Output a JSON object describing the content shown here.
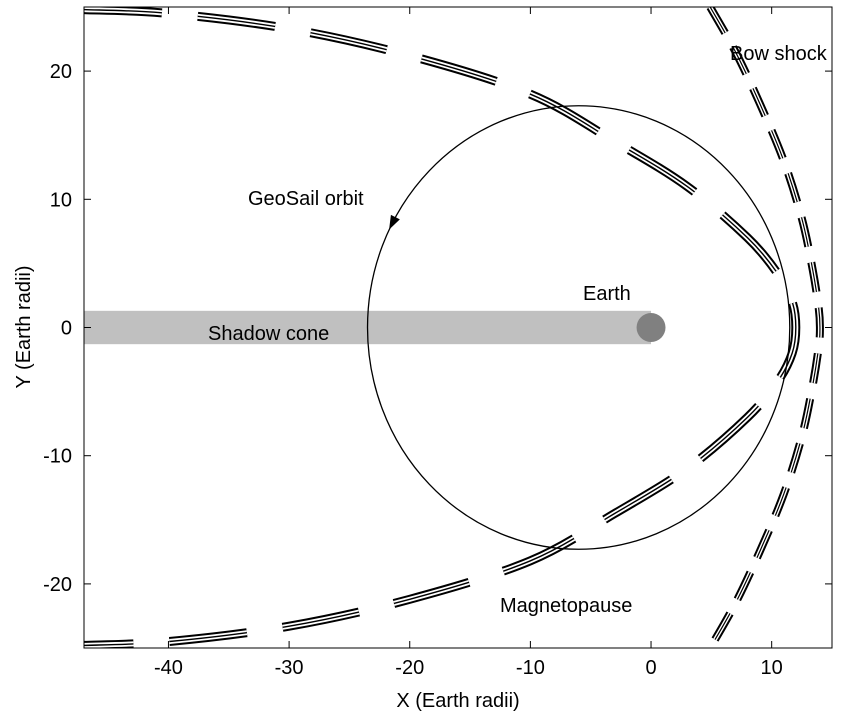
{
  "chart_data": {
    "type": "line",
    "xlabel": "X (Earth radii)",
    "ylabel": "Y (Earth radii)",
    "xlim": [
      -47,
      15
    ],
    "ylim": [
      -25,
      25
    ],
    "xticks": [
      -40,
      -30,
      -20,
      -10,
      0,
      10
    ],
    "yticks": [
      -20,
      -10,
      0,
      10,
      20
    ],
    "grid": false,
    "annotations": {
      "orbit": "GeoSail orbit",
      "earth": "Earth",
      "shadow": "Shadow cone",
      "bow_shock": "Bow shock",
      "magnetopause": "Magnetopause"
    },
    "orbit": {
      "description_values": "ellipse",
      "center_x": -6,
      "center_y": 0,
      "semi_axis_x": 17.5,
      "semi_axis_y": 17.3,
      "direction": "counterclockwise"
    },
    "earth": {
      "x": 0,
      "y": 0,
      "radius": 1.2
    },
    "shadow_cone": {
      "x_from": -47,
      "x_to": 0,
      "y_from": -1.3,
      "y_to": 1.3
    },
    "magnetopause": {
      "nose_x": 12,
      "points": [
        [
          -47,
          24.8
        ],
        [
          -40,
          24.5
        ],
        [
          -30,
          23.3
        ],
        [
          -20,
          21.2
        ],
        [
          -10,
          18.2
        ],
        [
          -3,
          14.5
        ],
        [
          3,
          11.0
        ],
        [
          8,
          7.0
        ],
        [
          10.5,
          4.2
        ],
        [
          11.7,
          2.0
        ],
        [
          12,
          0
        ],
        [
          11.7,
          -2.0
        ],
        [
          10.5,
          -4.2
        ],
        [
          8,
          -7.0
        ],
        [
          3,
          -11.0
        ],
        [
          -3,
          -14.5
        ],
        [
          -10,
          -18.2
        ],
        [
          -20,
          -21.2
        ],
        [
          -30,
          -23.3
        ],
        [
          -40,
          -24.5
        ],
        [
          -47,
          -24.8
        ]
      ]
    },
    "bow_shock": {
      "nose_x": 14,
      "points": [
        [
          4.9,
          25
        ],
        [
          7,
          21.5
        ],
        [
          9,
          17.5
        ],
        [
          11,
          13
        ],
        [
          12.5,
          8.5
        ],
        [
          13.4,
          4.5
        ],
        [
          13.9,
          1.5
        ],
        [
          14,
          0
        ],
        [
          13.9,
          -1.5
        ],
        [
          13.4,
          -4.5
        ],
        [
          12.5,
          -8.5
        ],
        [
          11,
          -13
        ],
        [
          9,
          -17.5
        ],
        [
          7,
          -21.5
        ],
        [
          4.9,
          -25
        ]
      ]
    },
    "colors": {
      "shadow": "#c0c0c0",
      "earth": "#808080",
      "lines": "#000000"
    }
  }
}
